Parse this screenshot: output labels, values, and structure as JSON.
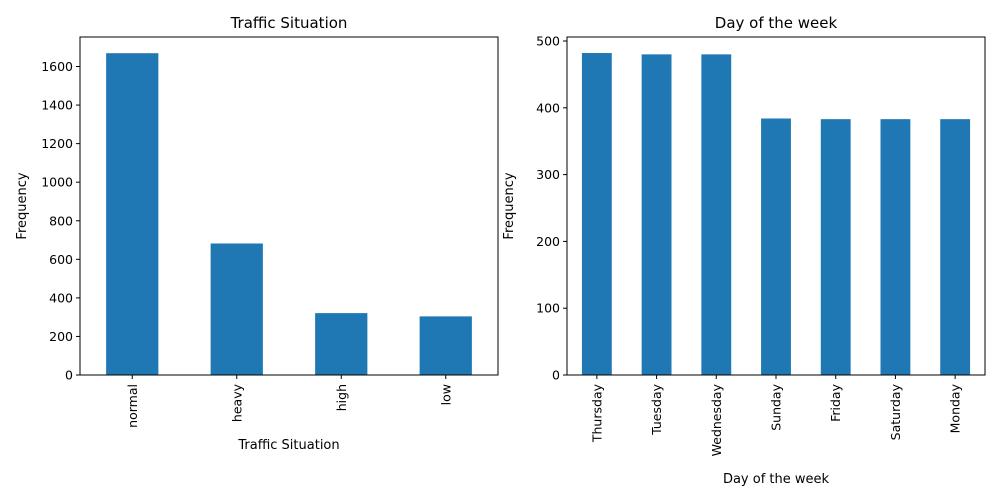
{
  "chart_data": [
    {
      "type": "bar",
      "title": "Traffic Situation",
      "xlabel": "Traffic Situation",
      "ylabel": "Frequency",
      "categories": [
        "normal",
        "heavy",
        "high",
        "low"
      ],
      "values": [
        1669,
        682,
        321,
        304
      ],
      "ylim": [
        0,
        1753
      ],
      "yticks": [
        0,
        200,
        400,
        600,
        800,
        1000,
        1200,
        1400,
        1600
      ],
      "color": "#1f77b4",
      "grid": false
    },
    {
      "type": "bar",
      "title": "Day of the week",
      "xlabel": "Day of the week",
      "ylabel": "Frequency",
      "categories": [
        "Thursday",
        "Tuesday",
        "Wednesday",
        "Sunday",
        "Friday",
        "Saturday",
        "Monday"
      ],
      "values": [
        482,
        480,
        480,
        384,
        383,
        383,
        383
      ],
      "ylim": [
        0,
        506
      ],
      "yticks": [
        0,
        100,
        200,
        300,
        400,
        500
      ],
      "color": "#1f77b4",
      "grid": false
    }
  ]
}
